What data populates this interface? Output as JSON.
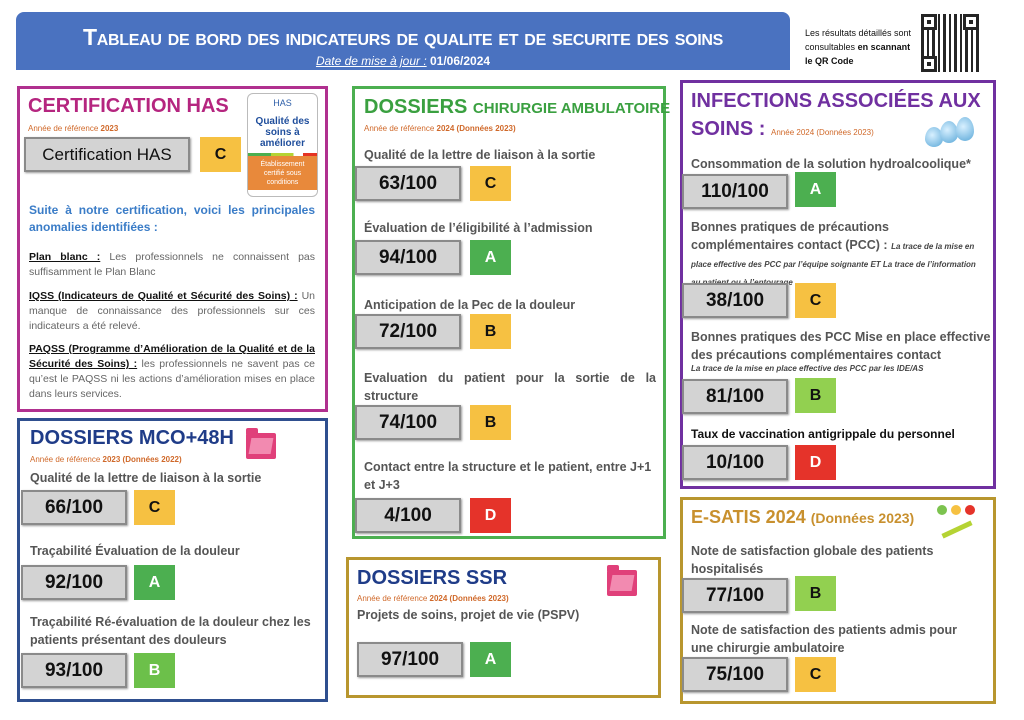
{
  "header": {
    "title": "Tableau de bord des indicateurs de qualite et de securite des soins",
    "date_label": "Date de mise à jour :",
    "date": "01/06/2024"
  },
  "qr": {
    "note_1": "Les résultats détaillés sont consultables",
    "note_bold": "en scannant le QR Code"
  },
  "colors": {
    "A": "#4caf50",
    "B": "#92d050",
    "C": "#f6c142",
    "D": "#e5332a",
    "header": "#4a72c0"
  },
  "certification": {
    "title": "CERTIFICATION HAS",
    "ref_label": "Année de référence",
    "ref_year": "2023",
    "score": "Certification HAS",
    "grade": "C",
    "logo": {
      "brand": "HAS",
      "line": "Qualité des soins à améliorer",
      "footer": "Établissement certifié sous conditions"
    },
    "intro": "Suite à notre certification, voici les principales anomalies identifiées :",
    "items": [
      {
        "head": "Plan blanc :",
        "text": "Les professionnels ne connaissent pas suffisamment le Plan Blanc"
      },
      {
        "head": "IQSS (Indicateurs de Qualité et Sécurité des Soins) :",
        "text": "Un manque de connaissance des professionnels sur ces indicateurs a été relevé."
      },
      {
        "head": "PAQSS (Programme d’Amélioration de la Qualité et de la Sécurité des Soins) :",
        "text": "les professionnels ne savent pas ce qu’est le PAQSS ni les actions d’amélioration mises en place dans leurs services."
      }
    ]
  },
  "mco": {
    "title": "DOSSIERS MCO+48H",
    "ref_label": "Année de référence",
    "ref_bold": "2023 (Données 2022)",
    "items": [
      {
        "label": "Qualité de la lettre de liaison à la sortie",
        "score": "66/100",
        "grade": "C"
      },
      {
        "label": "Traçabilité Évaluation de la douleur",
        "score": "92/100",
        "grade": "A"
      },
      {
        "label": "Traçabilité Ré-évaluation de la douleur chez les patients présentant des douleurs",
        "score": "93/100",
        "grade": "B"
      }
    ]
  },
  "chir": {
    "title_1": "DOSSIERS",
    "title_2": "CHIRURGIE AMBULATOIRE",
    "ref_label": "Année de référence",
    "ref_bold": "2024 (Données 2023)",
    "items": [
      {
        "label": "Qualité de la lettre de liaison à la sortie",
        "score": "63/100",
        "grade": "C"
      },
      {
        "label": "Évaluation de l’éligibilité à l’admission",
        "score": "94/100",
        "grade": "A"
      },
      {
        "label": "Anticipation de la Pec de la douleur",
        "score": "72/100",
        "grade": "B"
      },
      {
        "label": "Evaluation du patient pour la sortie de la structure",
        "score": "74/100",
        "grade": "B"
      },
      {
        "label": "Contact entre la structure et le patient, entre J+1 et J+3",
        "score": "4/100",
        "grade": "D"
      }
    ]
  },
  "ssr": {
    "title": "DOSSIERS SSR",
    "ref_label": "Année de référence",
    "ref_bold": "2024 (Données 2023)",
    "items": [
      {
        "label": "Projets de soins, projet de vie (PSPV)",
        "score": "97/100",
        "grade": "A"
      }
    ]
  },
  "ias": {
    "title_1": "INFECTIONS ASSOCIÉES AUX",
    "title_2": "SOINS :",
    "ref": "Année 2024 (Données 2023)",
    "items": [
      {
        "label": "Consommation de la solution hydroalcoolique*",
        "score": "110/100",
        "grade": "A"
      },
      {
        "label": "Bonnes pratiques de précautions complémentaires contact (PCC) :",
        "note": "La trace de la mise en place effective des PCC par l’équipe soignante ET La trace de l’information au patient ou à l’entourage",
        "score": "38/100",
        "grade": "C"
      },
      {
        "label": "Bonnes pratiques des PCC Mise en place effective des précautions complémentaires contact",
        "note": "La trace de la mise en place effective des PCC par les IDE/AS",
        "score": "81/100",
        "grade": "B"
      },
      {
        "label": "Taux de vaccination antigrippale du personnel",
        "score": "10/100",
        "grade": "D"
      }
    ]
  },
  "esatis": {
    "title": "E-SATIS 2024",
    "title_sub": "(Données 2023)",
    "items": [
      {
        "label": "Note de satisfaction globale des patients hospitalisés",
        "score": "77/100",
        "grade": "B"
      },
      {
        "label": "Note de satisfaction des patients admis pour une chirurgie ambulatoire",
        "score": "75/100",
        "grade": "C"
      }
    ]
  }
}
